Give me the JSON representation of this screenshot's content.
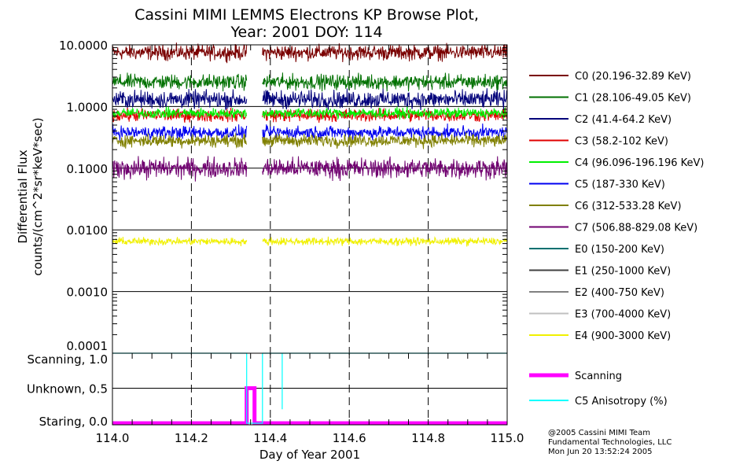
{
  "chart_data": [
    {
      "type": "line",
      "title": "Cassini MIMI LEMMS Electrons KP Browse Plot,",
      "subtitle": "Year: 2001 DOY: 114",
      "ylabel_line1": "Differential Flux",
      "ylabel_line2": "counts/(cm^2*sr*keV*sec)",
      "yscale": "log",
      "ylim": [
        0.0001,
        10
      ],
      "yticks": [
        "10.0000",
        "1.0000",
        "0.1000",
        "0.0100",
        "0.0010",
        "0.0001"
      ],
      "ytick_values": [
        10,
        1,
        0.1,
        0.01,
        0.001,
        0.0001
      ],
      "xlim": [
        114.0,
        115.0
      ],
      "data_gap": [
        114.34,
        114.38
      ],
      "grid": "horizontal solid at decades, vertical dashed at 0.2 day",
      "legend_position": "right",
      "series": [
        {
          "name": "C0 (20.196-32.89 KeV)",
          "color": "#7a0000",
          "level": 7.5,
          "noise": 0.06
        },
        {
          "name": "C1 (28.106-49.05 KeV)",
          "color": "#007000",
          "level": 2.5,
          "noise": 0.06
        },
        {
          "name": "C2 (41.4-64.2 KeV)",
          "color": "#00007a",
          "level": 1.3,
          "noise": 0.07
        },
        {
          "name": "C3 (58.2-102 KeV)",
          "color": "#e00000",
          "level": 0.72,
          "noise": 0.05
        },
        {
          "name": "C4 (96.096-196.196 KeV)",
          "color": "#00f000",
          "level": 0.78,
          "noise": 0.04
        },
        {
          "name": "C5 (187-330 KeV)",
          "color": "#0000f0",
          "level": 0.38,
          "noise": 0.05
        },
        {
          "name": "C6 (312-533.28 KeV)",
          "color": "#808000",
          "level": 0.28,
          "noise": 0.05
        },
        {
          "name": "C7 (506.88-829.08 KeV)",
          "color": "#700070",
          "level": 0.1,
          "noise": 0.08
        },
        {
          "name": "E0 (150-200 KeV)",
          "color": "#007070",
          "level": null,
          "noise": 0
        },
        {
          "name": "E1 (250-1000 KeV)",
          "color": "#404040",
          "level": null,
          "noise": 0
        },
        {
          "name": "E2 (400-750 KeV)",
          "color": "#808080",
          "level": null,
          "noise": 0
        },
        {
          "name": "E3 (700-4000 KeV)",
          "color": "#c0c0c0",
          "level": null,
          "noise": 0
        },
        {
          "name": "E4 (900-3000 KeV)",
          "color": "#f0f000",
          "level": 0.0065,
          "noise": 0.03
        }
      ]
    },
    {
      "type": "line",
      "xlabel": "Day of Year 2001",
      "xticks": [
        "114.0",
        "114.2",
        "114.4",
        "114.6",
        "114.8",
        "115.0"
      ],
      "xtick_values": [
        114.0,
        114.2,
        114.4,
        114.6,
        114.8,
        115.0
      ],
      "xlim": [
        114.0,
        115.0
      ],
      "ylim": [
        0,
        1
      ],
      "yticks": [
        "Scanning, 1.0",
        "Unknown, 0.5",
        "Staring, 0.0"
      ],
      "ytick_values": [
        1.0,
        0.5,
        0.0
      ],
      "legend_position": "right",
      "series": [
        {
          "name": "Scanning",
          "color": "#ff00ff",
          "x": [
            114.0,
            114.34,
            114.34,
            114.36,
            114.36,
            115.0
          ],
          "y": [
            0.0,
            0.0,
            0.5,
            0.5,
            0.0,
            0.0
          ]
        },
        {
          "name": "C5 Anisotropy (%)",
          "color": "#00ffff",
          "x": [
            114.0,
            114.34,
            114.34,
            114.38,
            114.38,
            114.43,
            114.43,
            114.43,
            115.0
          ],
          "y": [
            1.0,
            1.0,
            0.0,
            0.0,
            1.0,
            1.0,
            0.2,
            1.0,
            1.0
          ]
        }
      ]
    }
  ],
  "footer": {
    "line1": "@2005 Cassini MIMI Team",
    "line2": "Fundamental Technologies, LLC",
    "line3": "Mon Jun 20 13:52:24 2005"
  }
}
